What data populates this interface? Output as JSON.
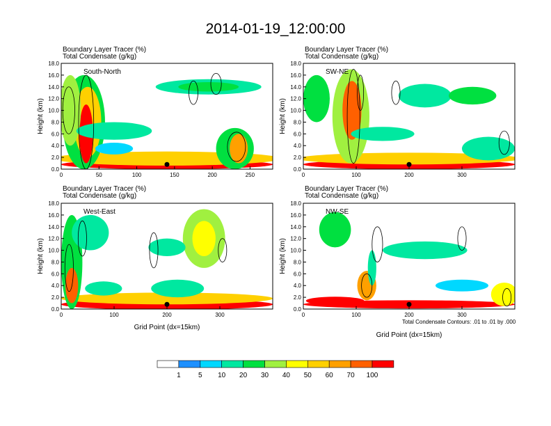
{
  "title": "2014-01-19_12:00:00",
  "panel_title_line1": "Boundary Layer Tracer    (%)",
  "panel_title_line2": "Total Condensate    (g/kg)",
  "footnote": "Total Condensate Contours: .01 to .01 by .000",
  "colors": {
    "levels": [
      "#ffffff",
      "#1e90ff",
      "#00d8ff",
      "#00e8a0",
      "#00e040",
      "#a0f040",
      "#ffff00",
      "#ffd000",
      "#ffa000",
      "#ff6000",
      "#ff0000"
    ],
    "marker": "#000000",
    "contour": "#000000"
  },
  "colorbar": {
    "labels": [
      "1",
      "5",
      "10",
      "20",
      "30",
      "40",
      "50",
      "60",
      "70",
      "100"
    ]
  },
  "chart_data": [
    {
      "type": "heatmap",
      "label": "South-North",
      "ylabel": "Height (km)",
      "xlabel": "",
      "xlim": [
        0,
        280
      ],
      "ylim": [
        0,
        18
      ],
      "xticks": [
        0,
        50,
        100,
        150,
        200,
        250
      ],
      "xtick_labels": [
        "0",
        "50",
        "100",
        "150",
        "200",
        "250"
      ],
      "yticks": [
        0,
        2,
        4,
        6,
        8,
        10,
        12,
        14,
        16,
        18
      ],
      "ytick_labels": [
        "0.0",
        "2.0",
        "4.0",
        "6.0",
        "8.0",
        "10.0",
        "12.0",
        "14.0",
        "16.0",
        "18.0"
      ],
      "marker": [
        140,
        0.8
      ],
      "blobs": [
        {
          "x": 140,
          "y": 0.8,
          "w": 140,
          "h": 0.8,
          "level": 10
        },
        {
          "x": 140,
          "y": 1.8,
          "w": 150,
          "h": 1.2,
          "level": 7
        },
        {
          "x": 30,
          "y": 8,
          "w": 28,
          "h": 8,
          "level": 4
        },
        {
          "x": 35,
          "y": 8,
          "w": 18,
          "h": 6,
          "level": 7
        },
        {
          "x": 33,
          "y": 6,
          "w": 9,
          "h": 5,
          "level": 10
        },
        {
          "x": 12,
          "y": 10,
          "w": 14,
          "h": 6,
          "level": 5
        },
        {
          "x": 70,
          "y": 6.5,
          "w": 50,
          "h": 1.5,
          "level": 3
        },
        {
          "x": 195,
          "y": 14,
          "w": 70,
          "h": 1.3,
          "level": 3
        },
        {
          "x": 195,
          "y": 14,
          "w": 40,
          "h": 0.8,
          "level": 4
        },
        {
          "x": 230,
          "y": 3.5,
          "w": 25,
          "h": 3.5,
          "level": 4
        },
        {
          "x": 235,
          "y": 3.5,
          "w": 12,
          "h": 2.5,
          "level": 8
        },
        {
          "x": 70,
          "y": 3.5,
          "w": 25,
          "h": 1.0,
          "level": 2
        }
      ],
      "contours": [
        {
          "x": 33,
          "y": 8,
          "w": 10,
          "h": 8
        },
        {
          "x": 175,
          "y": 13,
          "w": 6,
          "h": 2
        },
        {
          "x": 205,
          "y": 14.5,
          "w": 7,
          "h": 1.8
        },
        {
          "x": 232,
          "y": 3.8,
          "w": 12,
          "h": 2.5
        },
        {
          "x": 10,
          "y": 10,
          "w": 8,
          "h": 4
        }
      ]
    },
    {
      "type": "heatmap",
      "label": "SW-NE",
      "ylabel": "Height (km)",
      "xlabel": "",
      "xlim": [
        0,
        400
      ],
      "ylim": [
        0,
        18
      ],
      "xticks": [
        0,
        100,
        200,
        300
      ],
      "xtick_labels": [
        "0",
        "100",
        "200",
        "300"
      ],
      "yticks": [
        0,
        2,
        4,
        6,
        8,
        10,
        12,
        14,
        16,
        18
      ],
      "ytick_labels": [
        "0.0",
        "2.0",
        "4.0",
        "6.0",
        "8.0",
        "10.0",
        "12.0",
        "14.0",
        "16.0",
        "18.0"
      ],
      "marker": [
        200,
        0.8
      ],
      "blobs": [
        {
          "x": 200,
          "y": 0.8,
          "w": 200,
          "h": 0.8,
          "level": 10
        },
        {
          "x": 200,
          "y": 1.8,
          "w": 210,
          "h": 1.0,
          "level": 7
        },
        {
          "x": 90,
          "y": 9,
          "w": 35,
          "h": 8,
          "level": 5
        },
        {
          "x": 92,
          "y": 10,
          "w": 18,
          "h": 5,
          "level": 9
        },
        {
          "x": 25,
          "y": 12,
          "w": 25,
          "h": 4,
          "level": 4
        },
        {
          "x": 150,
          "y": 6,
          "w": 60,
          "h": 1.2,
          "level": 3
        },
        {
          "x": 230,
          "y": 12.5,
          "w": 50,
          "h": 2,
          "level": 3
        },
        {
          "x": 320,
          "y": 12.5,
          "w": 45,
          "h": 1.5,
          "level": 4
        },
        {
          "x": 350,
          "y": 3.5,
          "w": 50,
          "h": 2,
          "level": 3
        }
      ],
      "contours": [
        {
          "x": 95,
          "y": 9,
          "w": 12,
          "h": 8
        },
        {
          "x": 175,
          "y": 13,
          "w": 8,
          "h": 2
        },
        {
          "x": 380,
          "y": 4.5,
          "w": 10,
          "h": 2
        },
        {
          "x": 108,
          "y": 13,
          "w": 6,
          "h": 3
        }
      ]
    },
    {
      "type": "heatmap",
      "label": "West-East",
      "ylabel": "Height (km)",
      "xlabel": "Grid Point (dx=15km)",
      "xlim": [
        0,
        400
      ],
      "ylim": [
        0,
        18
      ],
      "xticks": [
        0,
        100,
        200,
        300
      ],
      "xtick_labels": [
        "0",
        "100",
        "200",
        "300"
      ],
      "yticks": [
        0,
        2,
        4,
        6,
        8,
        10,
        12,
        14,
        16,
        18
      ],
      "ytick_labels": [
        "0.0",
        "2.0",
        "4.0",
        "6.0",
        "8.0",
        "10.0",
        "12.0",
        "14.0",
        "16.0",
        "18.0"
      ],
      "marker": [
        200,
        0.8
      ],
      "blobs": [
        {
          "x": 200,
          "y": 0.8,
          "w": 200,
          "h": 0.9,
          "level": 10
        },
        {
          "x": 200,
          "y": 1.8,
          "w": 200,
          "h": 1.0,
          "level": 7
        },
        {
          "x": 20,
          "y": 8,
          "w": 20,
          "h": 8,
          "level": 4
        },
        {
          "x": 20,
          "y": 4,
          "w": 12,
          "h": 3,
          "level": 9
        },
        {
          "x": 55,
          "y": 13,
          "w": 35,
          "h": 3,
          "level": 3
        },
        {
          "x": 270,
          "y": 12,
          "w": 40,
          "h": 5,
          "level": 5
        },
        {
          "x": 270,
          "y": 12,
          "w": 22,
          "h": 3,
          "level": 6
        },
        {
          "x": 200,
          "y": 10.5,
          "w": 35,
          "h": 1.5,
          "level": 3
        },
        {
          "x": 220,
          "y": 3.5,
          "w": 50,
          "h": 1.5,
          "level": 3
        },
        {
          "x": 80,
          "y": 3.5,
          "w": 35,
          "h": 1.2,
          "level": 3
        }
      ],
      "contours": [
        {
          "x": 175,
          "y": 10,
          "w": 8,
          "h": 3
        },
        {
          "x": 40,
          "y": 12,
          "w": 8,
          "h": 3
        },
        {
          "x": 305,
          "y": 10,
          "w": 8,
          "h": 2
        },
        {
          "x": 15,
          "y": 7,
          "w": 8,
          "h": 4
        }
      ]
    },
    {
      "type": "heatmap",
      "label": "NW-SE",
      "ylabel": "Height (km)",
      "xlabel": "Grid Point (dx=15km)",
      "xlim": [
        0,
        400
      ],
      "ylim": [
        0,
        18
      ],
      "xticks": [
        0,
        100,
        200,
        300
      ],
      "xtick_labels": [
        "0",
        "100",
        "200",
        "300"
      ],
      "yticks": [
        0,
        2,
        4,
        6,
        8,
        10,
        12,
        14,
        16,
        18
      ],
      "ytick_labels": [
        "0.0",
        "2.0",
        "4.0",
        "6.0",
        "8.0",
        "10.0",
        "12.0",
        "14.0",
        "16.0",
        "18.0"
      ],
      "marker": [
        200,
        0.8
      ],
      "blobs": [
        {
          "x": 200,
          "y": 0.8,
          "w": 200,
          "h": 0.7,
          "level": 10
        },
        {
          "x": 60,
          "y": 1.4,
          "w": 55,
          "h": 0.7,
          "level": 10
        },
        {
          "x": 60,
          "y": 13.5,
          "w": 30,
          "h": 3,
          "level": 4
        },
        {
          "x": 120,
          "y": 4,
          "w": 18,
          "h": 2.5,
          "level": 8
        },
        {
          "x": 130,
          "y": 7,
          "w": 8,
          "h": 3,
          "level": 3
        },
        {
          "x": 230,
          "y": 10,
          "w": 80,
          "h": 1.5,
          "level": 3
        },
        {
          "x": 380,
          "y": 2.5,
          "w": 25,
          "h": 2,
          "level": 6
        },
        {
          "x": 300,
          "y": 4,
          "w": 50,
          "h": 1,
          "level": 2
        }
      ],
      "contours": [
        {
          "x": 140,
          "y": 11,
          "w": 10,
          "h": 3
        },
        {
          "x": 300,
          "y": 12,
          "w": 8,
          "h": 2
        },
        {
          "x": 385,
          "y": 2,
          "w": 8,
          "h": 1.5
        },
        {
          "x": 120,
          "y": 4,
          "w": 10,
          "h": 2
        }
      ]
    }
  ]
}
